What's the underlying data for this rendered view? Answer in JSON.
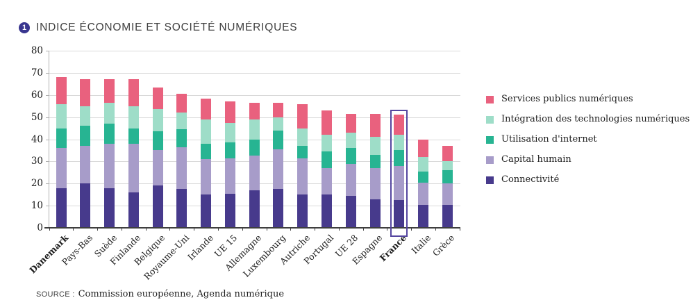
{
  "title": {
    "badge_number": "1",
    "text": "INDICE ÉCONOMIE ET SOCIÉTÉ NUMÉRIQUES"
  },
  "source": {
    "label": "SOURCE :",
    "text": "Commission européenne, Agenda numérique"
  },
  "colors": {
    "badge_bg": "#39368f",
    "title_text": "#3f3f3f",
    "grid": "#d9d9d9",
    "y_axis_line": "#b0b0b0",
    "x_axis_line": "#3f3f3f",
    "tick_label": "#1c1c1c",
    "highlight_border": "#5546a0"
  },
  "chart_data": {
    "type": "bar",
    "stacked": true,
    "title": "INDICE ÉCONOMIE ET SOCIÉTÉ NUMÉRIQUES",
    "xlabel": "",
    "ylabel": "",
    "ylim": [
      0,
      80
    ],
    "yticks": [
      0,
      10,
      20,
      30,
      40,
      50,
      60,
      70,
      80
    ],
    "grid": "horizontal",
    "legend_position": "right",
    "categories": [
      "Danemark",
      "Pays-Bas",
      "Suède",
      "Finlande",
      "Belgique",
      "Royaume-Uni",
      "Irlande",
      "UE 15",
      "Allemagne",
      "Luxembourg",
      "Autriche",
      "Portugal",
      "UE 28",
      "Espagne",
      "France",
      "Italie",
      "Grèce"
    ],
    "bold_categories": [
      "Danemark",
      "France"
    ],
    "highlighted_category": "France",
    "series": [
      {
        "name": "Connectivité",
        "color": "#473a8c",
        "values": [
          18,
          20,
          18,
          16,
          19,
          17.5,
          15,
          15.5,
          17,
          17.5,
          15,
          15,
          14.5,
          13,
          12.5,
          10.5,
          10.5
        ]
      },
      {
        "name": "Capital humain",
        "color": "#a79cc9",
        "values": [
          18,
          17,
          20,
          22,
          16,
          19,
          16,
          16,
          15.5,
          18,
          16.5,
          12,
          14.5,
          14,
          15.5,
          10,
          9.5
        ]
      },
      {
        "name": "Utilisation d'internet",
        "color": "#27b492",
        "values": [
          9,
          9,
          9,
          7,
          8.5,
          8,
          7,
          7,
          7.5,
          8.5,
          5.5,
          7.5,
          7,
          6,
          7,
          5,
          6
        ]
      },
      {
        "name": "Intégration des technologies numériques",
        "color": "#9eddc8",
        "values": [
          11,
          9,
          9.5,
          10,
          10,
          7.5,
          11,
          9,
          9,
          6,
          8,
          7.5,
          7,
          8,
          7,
          6.5,
          4
        ]
      },
      {
        "name": "Services publics numériques",
        "color": "#e9617e",
        "values": [
          12,
          12,
          10.5,
          12,
          10,
          8.5,
          9.5,
          9.5,
          7.5,
          6.5,
          11,
          11,
          8.5,
          10.5,
          9,
          8,
          7
        ]
      }
    ],
    "totals": [
      68,
      67,
      67,
      67,
      63.5,
      60.5,
      58.5,
      57,
      56.5,
      56.5,
      56,
      53,
      51.5,
      51.5,
      51,
      40,
      37
    ],
    "legend_order": [
      "Services publics numériques",
      "Intégration des technologies numériques",
      "Utilisation d'internet",
      "Capital humain",
      "Connectivité"
    ]
  }
}
